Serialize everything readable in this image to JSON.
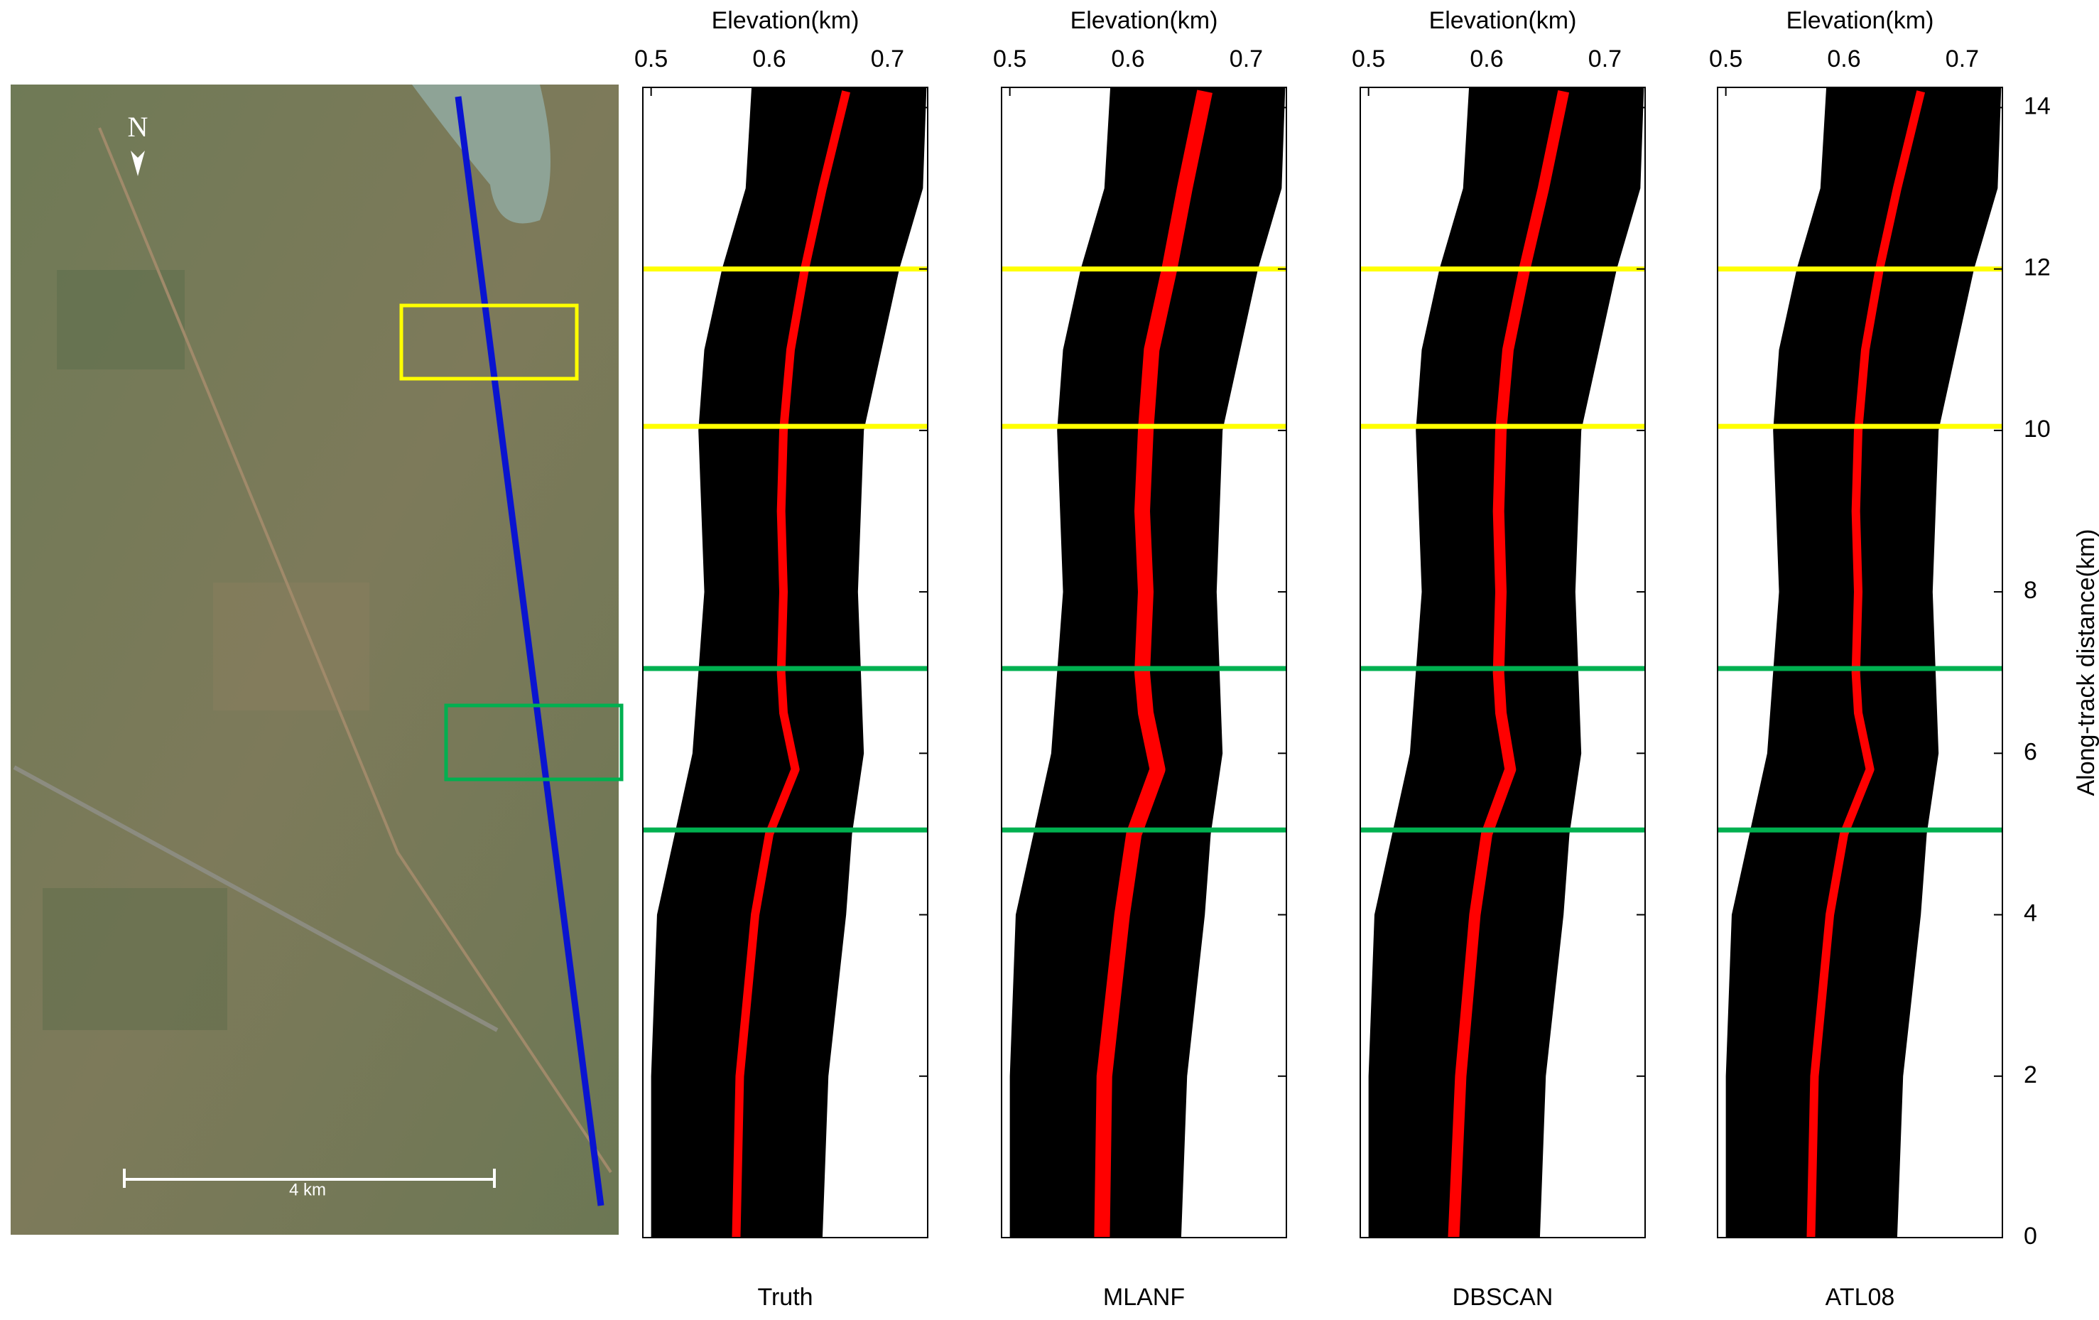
{
  "map": {
    "north_label": "N",
    "scale_label": "4 km"
  },
  "chart_data": [
    {
      "type": "profile",
      "title": "Truth",
      "xlabel": "Elevation(km)",
      "xlim": [
        0.493,
        0.734
      ],
      "xticks": [
        0.5,
        0.6,
        0.7
      ],
      "ylim": [
        0,
        14.25
      ],
      "yticks": [
        0,
        2,
        4,
        6,
        8,
        10,
        12,
        14
      ],
      "ytick_labels": false,
      "band": {
        "color": "#000000",
        "y": [
          0,
          2,
          4,
          5,
          6,
          8,
          10,
          11,
          12,
          13,
          14.25
        ],
        "left": [
          0.5,
          0.5,
          0.505,
          0.52,
          0.535,
          0.545,
          0.54,
          0.545,
          0.56,
          0.58,
          0.585
        ],
        "right": [
          0.645,
          0.65,
          0.665,
          0.67,
          0.68,
          0.675,
          0.68,
          0.695,
          0.71,
          0.73,
          0.733
        ]
      },
      "ground": {
        "color": "#ff0000",
        "line_width": 12,
        "y": [
          0,
          2,
          4,
          5,
          5.8,
          6.5,
          7,
          8,
          9,
          10,
          11,
          12,
          13,
          14.2
        ],
        "x": [
          0.572,
          0.575,
          0.588,
          0.6,
          0.622,
          0.612,
          0.61,
          0.612,
          0.61,
          0.612,
          0.618,
          0.63,
          0.645,
          0.665
        ]
      },
      "hlines": [
        {
          "value": 12,
          "color": "#ffff00"
        },
        {
          "value": 10.05,
          "color": "#ffff00"
        },
        {
          "value": 7.05,
          "color": "#00b050"
        },
        {
          "value": 5.05,
          "color": "#00b050"
        }
      ]
    },
    {
      "type": "profile",
      "title": "MLANF",
      "xlabel": "Elevation(km)",
      "xlim": [
        0.493,
        0.734
      ],
      "xticks": [
        0.5,
        0.6,
        0.7
      ],
      "ylim": [
        0,
        14.25
      ],
      "yticks": [
        0,
        2,
        4,
        6,
        8,
        10,
        12,
        14
      ],
      "ytick_labels": false,
      "band": {
        "color": "#000000",
        "y": [
          0,
          2,
          4,
          5,
          6,
          8,
          10,
          11,
          12,
          13,
          14.25
        ],
        "left": [
          0.5,
          0.5,
          0.505,
          0.52,
          0.535,
          0.545,
          0.54,
          0.545,
          0.56,
          0.58,
          0.585
        ],
        "right": [
          0.645,
          0.65,
          0.665,
          0.67,
          0.68,
          0.675,
          0.68,
          0.695,
          0.71,
          0.73,
          0.733
        ]
      },
      "ground": {
        "color": "#ff0000",
        "line_width": 22,
        "y": [
          0,
          2,
          4,
          5,
          5.8,
          6.5,
          7,
          8,
          9,
          10,
          11,
          12,
          13,
          14.2
        ],
        "x": [
          0.578,
          0.58,
          0.595,
          0.605,
          0.625,
          0.615,
          0.612,
          0.615,
          0.612,
          0.615,
          0.62,
          0.635,
          0.648,
          0.665
        ]
      },
      "hlines": [
        {
          "value": 12,
          "color": "#ffff00"
        },
        {
          "value": 10.05,
          "color": "#ffff00"
        },
        {
          "value": 7.05,
          "color": "#00b050"
        },
        {
          "value": 5.05,
          "color": "#00b050"
        }
      ]
    },
    {
      "type": "profile",
      "title": "DBSCAN",
      "xlabel": "Elevation(km)",
      "xlim": [
        0.493,
        0.734
      ],
      "xticks": [
        0.5,
        0.6,
        0.7
      ],
      "ylim": [
        0,
        14.25
      ],
      "yticks": [
        0,
        2,
        4,
        6,
        8,
        10,
        12,
        14
      ],
      "ytick_labels": false,
      "band": {
        "color": "#000000",
        "y": [
          0,
          2,
          4,
          5,
          6,
          8,
          10,
          11,
          12,
          13,
          14.25
        ],
        "left": [
          0.5,
          0.5,
          0.505,
          0.52,
          0.535,
          0.545,
          0.54,
          0.545,
          0.56,
          0.58,
          0.585
        ],
        "right": [
          0.645,
          0.65,
          0.665,
          0.67,
          0.68,
          0.675,
          0.68,
          0.695,
          0.71,
          0.73,
          0.733
        ]
      },
      "ground": {
        "color": "#ff0000",
        "line_width": 16,
        "y": [
          0,
          2,
          4,
          5,
          5.8,
          6.5,
          7,
          8,
          9,
          10,
          11,
          12,
          13,
          14.2
        ],
        "x": [
          0.572,
          0.578,
          0.59,
          0.6,
          0.62,
          0.612,
          0.61,
          0.612,
          0.61,
          0.612,
          0.618,
          0.632,
          0.648,
          0.665
        ]
      },
      "hlines": [
        {
          "value": 12,
          "color": "#ffff00"
        },
        {
          "value": 10.05,
          "color": "#ffff00"
        },
        {
          "value": 7.05,
          "color": "#00b050"
        },
        {
          "value": 5.05,
          "color": "#00b050"
        }
      ]
    },
    {
      "type": "profile",
      "title": "ATL08",
      "xlabel": "Elevation(km)",
      "ylabel": "Along-track distance(km)",
      "xlim": [
        0.493,
        0.734
      ],
      "xticks": [
        0.5,
        0.6,
        0.7
      ],
      "ylim": [
        0,
        14.25
      ],
      "yticks": [
        0,
        2,
        4,
        6,
        8,
        10,
        12,
        14
      ],
      "ytick_labels": true,
      "band": {
        "color": "#000000",
        "y": [
          0,
          2,
          4,
          5,
          6,
          8,
          10,
          11,
          12,
          13,
          14.25
        ],
        "left": [
          0.5,
          0.5,
          0.505,
          0.52,
          0.535,
          0.545,
          0.54,
          0.545,
          0.56,
          0.58,
          0.585
        ],
        "right": [
          0.645,
          0.65,
          0.665,
          0.67,
          0.68,
          0.675,
          0.68,
          0.695,
          0.71,
          0.73,
          0.733
        ]
      },
      "ground": {
        "color": "#ff0000",
        "line_width": 12,
        "y": [
          0,
          2,
          4,
          5,
          5.8,
          6.5,
          7,
          8,
          9,
          10,
          11,
          12,
          13,
          14.2
        ],
        "x": [
          0.572,
          0.575,
          0.588,
          0.6,
          0.622,
          0.612,
          0.61,
          0.612,
          0.61,
          0.612,
          0.618,
          0.63,
          0.645,
          0.665
        ]
      },
      "hlines": [
        {
          "value": 12,
          "color": "#ffff00"
        },
        {
          "value": 10.05,
          "color": "#ffff00"
        },
        {
          "value": 7.05,
          "color": "#00b050"
        },
        {
          "value": 5.05,
          "color": "#00b050"
        }
      ]
    }
  ]
}
